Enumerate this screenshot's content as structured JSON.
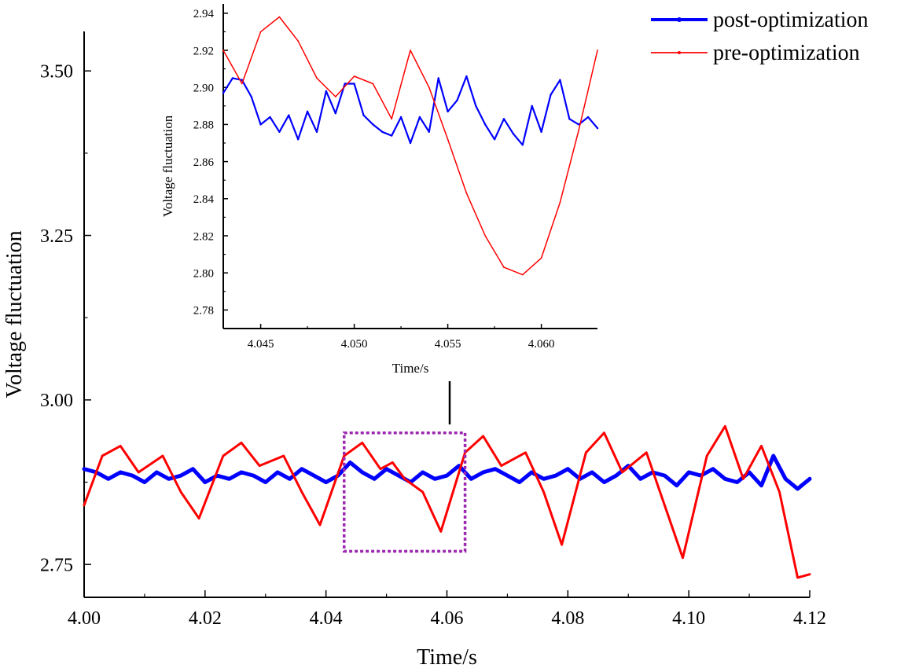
{
  "chart_data": [
    {
      "type": "line",
      "xlabel": "Time/s",
      "ylabel": "Voltage fluctuation",
      "xlim": [
        4.0,
        4.12
      ],
      "ylim": [
        2.7,
        3.56
      ],
      "x_ticks": [
        "4.00",
        "4.02",
        "4.04",
        "4.06",
        "4.08",
        "4.10",
        "4.12"
      ],
      "y_ticks": [
        "2.75",
        "3.00",
        "3.25",
        "3.50"
      ],
      "legend_position": "top-right",
      "zoom_box": {
        "x": [
          4.043,
          4.063
        ],
        "y": [
          2.77,
          2.95
        ]
      },
      "series": [
        {
          "name": "post-optimization",
          "color": "#0000ff",
          "x": [
            4.0,
            4.002,
            4.004,
            4.006,
            4.008,
            4.01,
            4.012,
            4.014,
            4.016,
            4.018,
            4.02,
            4.022,
            4.024,
            4.026,
            4.028,
            4.03,
            4.032,
            4.034,
            4.036,
            4.038,
            4.04,
            4.042,
            4.044,
            4.046,
            4.048,
            4.05,
            4.052,
            4.054,
            4.056,
            4.058,
            4.06,
            4.062,
            4.064,
            4.066,
            4.068,
            4.07,
            4.072,
            4.074,
            4.076,
            4.078,
            4.08,
            4.082,
            4.084,
            4.086,
            4.088,
            4.09,
            4.092,
            4.094,
            4.096,
            4.098,
            4.1,
            4.102,
            4.104,
            4.106,
            4.108,
            4.11,
            4.112,
            4.114,
            4.116,
            4.118,
            4.12
          ],
          "y": [
            2.895,
            2.89,
            2.88,
            2.89,
            2.885,
            2.875,
            2.89,
            2.88,
            2.885,
            2.895,
            2.875,
            2.885,
            2.88,
            2.89,
            2.885,
            2.875,
            2.89,
            2.88,
            2.895,
            2.885,
            2.875,
            2.885,
            2.905,
            2.89,
            2.88,
            2.895,
            2.885,
            2.875,
            2.89,
            2.88,
            2.885,
            2.9,
            2.88,
            2.89,
            2.895,
            2.885,
            2.875,
            2.89,
            2.88,
            2.885,
            2.895,
            2.88,
            2.89,
            2.875,
            2.885,
            2.9,
            2.88,
            2.89,
            2.885,
            2.87,
            2.89,
            2.885,
            2.895,
            2.88,
            2.875,
            2.89,
            2.87,
            2.915,
            2.88,
            2.865,
            2.88
          ]
        },
        {
          "name": "pre-optimization",
          "color": "#ff0000",
          "x": [
            4.0,
            4.003,
            4.006,
            4.009,
            4.013,
            4.016,
            4.019,
            4.023,
            4.026,
            4.029,
            4.033,
            4.036,
            4.039,
            4.043,
            4.046,
            4.049,
            4.051,
            4.053,
            4.056,
            4.059,
            4.063,
            4.066,
            4.069,
            4.073,
            4.076,
            4.079,
            4.083,
            4.086,
            4.089,
            4.093,
            4.096,
            4.099,
            4.103,
            4.106,
            4.109,
            4.112,
            4.115,
            4.118,
            4.12
          ],
          "y": [
            2.84,
            2.915,
            2.93,
            2.89,
            2.915,
            2.86,
            2.82,
            2.915,
            2.935,
            2.9,
            2.915,
            2.86,
            2.81,
            2.915,
            2.935,
            2.895,
            2.905,
            2.88,
            2.86,
            2.8,
            2.92,
            2.945,
            2.9,
            2.92,
            2.86,
            2.78,
            2.92,
            2.95,
            2.89,
            2.92,
            2.84,
            2.76,
            2.915,
            2.96,
            2.88,
            2.93,
            2.86,
            2.73,
            2.735
          ]
        }
      ]
    },
    {
      "type": "line",
      "xlabel": "Time/s",
      "ylabel": "Voltage fluctuation",
      "xlim": [
        4.043,
        4.063
      ],
      "ylim": [
        2.77,
        2.945
      ],
      "x_ticks": [
        "4.045",
        "4.050",
        "4.055",
        "4.060"
      ],
      "y_ticks": [
        "2.78",
        "2.80",
        "2.82",
        "2.84",
        "2.86",
        "2.88",
        "2.90",
        "2.92",
        "2.94"
      ],
      "series": [
        {
          "name": "post-optimization",
          "color": "#0000ff",
          "x": [
            4.043,
            4.0435,
            4.044,
            4.0445,
            4.045,
            4.0455,
            4.046,
            4.0465,
            4.047,
            4.0475,
            4.048,
            4.0485,
            4.049,
            4.0495,
            4.05,
            4.0505,
            4.051,
            4.0515,
            4.052,
            4.0525,
            4.053,
            4.0535,
            4.054,
            4.0545,
            4.055,
            4.0555,
            4.056,
            4.0565,
            4.057,
            4.0575,
            4.058,
            4.0585,
            4.059,
            4.0595,
            4.06,
            4.0605,
            4.061,
            4.0615,
            4.062,
            4.0625,
            4.063
          ],
          "y": [
            2.897,
            2.905,
            2.904,
            2.895,
            2.88,
            2.884,
            2.876,
            2.885,
            2.872,
            2.887,
            2.876,
            2.898,
            2.886,
            2.902,
            2.902,
            2.885,
            2.88,
            2.876,
            2.874,
            2.884,
            2.87,
            2.884,
            2.876,
            2.905,
            2.887,
            2.893,
            2.906,
            2.89,
            2.88,
            2.872,
            2.883,
            2.875,
            2.869,
            2.89,
            2.876,
            2.896,
            2.904,
            2.883,
            2.88,
            2.884,
            2.878
          ]
        },
        {
          "name": "pre-optimization",
          "color": "#ff0000",
          "x": [
            4.043,
            4.044,
            4.045,
            4.046,
            4.047,
            4.048,
            4.049,
            4.05,
            4.051,
            4.052,
            4.053,
            4.054,
            4.055,
            4.056,
            4.057,
            4.058,
            4.059,
            4.06,
            4.061,
            4.062,
            4.063
          ],
          "y": [
            2.92,
            2.902,
            2.93,
            2.938,
            2.925,
            2.905,
            2.895,
            2.906,
            2.902,
            2.883,
            2.92,
            2.9,
            2.872,
            2.843,
            2.82,
            2.803,
            2.799,
            2.808,
            2.838,
            2.877,
            2.92
          ]
        }
      ]
    }
  ]
}
